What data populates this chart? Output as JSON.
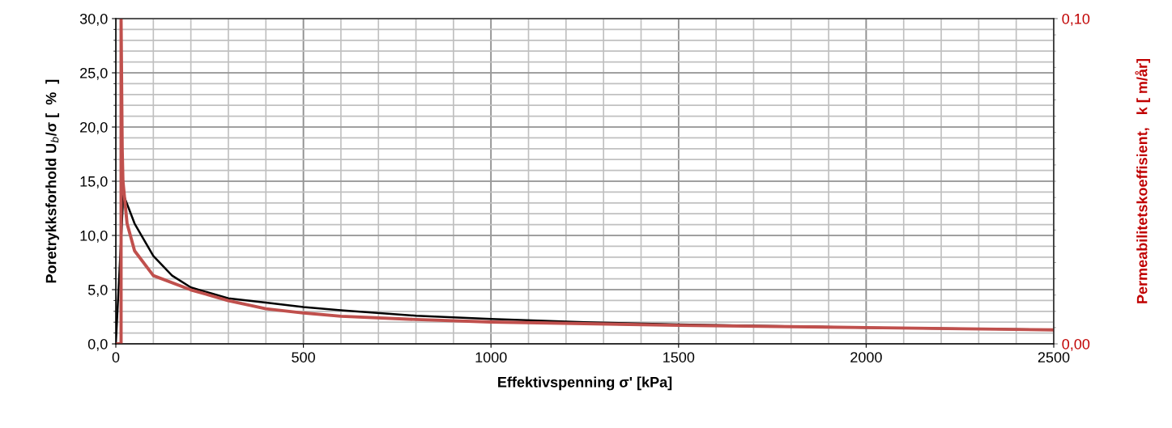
{
  "chart_data": {
    "type": "line",
    "xlabel": "Effektivspenning σ' [kPa]",
    "ylabel": "Poretrykksforhold U$_{b}$/σ [  %  ]",
    "y2label": "Permeabilitetskoeffisient,   k [ m/år]",
    "xlim": [
      0,
      2500
    ],
    "xticks": [
      0,
      500,
      1000,
      1500,
      2000,
      2500
    ],
    "ylim": [
      0,
      30
    ],
    "yticks": [
      {
        "value": 0,
        "label": "0,0"
      },
      {
        "value": 5,
        "label": "5,0"
      },
      {
        "value": 10,
        "label": "10,0"
      },
      {
        "value": 15,
        "label": "15,0"
      },
      {
        "value": 20,
        "label": "20,0"
      },
      {
        "value": 25,
        "label": "25,0"
      },
      {
        "value": 30,
        "label": "30,0"
      }
    ],
    "y2lim": [
      0,
      0.1
    ],
    "y2ticks": [
      {
        "value": 0,
        "label": "0,00"
      },
      {
        "value": 0.1,
        "label": "0,10"
      }
    ],
    "grid": true,
    "marker": "none",
    "line_style": "solid",
    "series": [
      {
        "color": "#000000",
        "x": [
          0,
          20,
          50,
          100,
          150,
          200,
          300,
          400,
          500,
          600,
          800,
          1000,
          1250,
          1500,
          1750,
          2000,
          2250,
          2500
        ],
        "values": [
          0,
          13.8,
          11.1,
          8.1,
          6.3,
          5.2,
          4.2,
          3.8,
          3.4,
          3.1,
          2.6,
          2.3,
          2.0,
          1.8,
          1.65,
          1.5,
          1.4,
          1.3
        ]
      },
      {
        "color": "#c0504d",
        "axis": "y2",
        "x": [
          0,
          14,
          14,
          17,
          19,
          30,
          50,
          100,
          200,
          300,
          400,
          500,
          600,
          800,
          1000,
          1500,
          2000,
          2500
        ],
        "values": [
          0,
          0,
          0.1,
          0.06,
          0.05,
          0.037,
          0.0286,
          0.021,
          0.0166,
          0.0133,
          0.0108,
          0.0095,
          0.0085,
          0.0075,
          0.0067,
          0.0057,
          0.005,
          0.0043
        ]
      }
    ]
  }
}
